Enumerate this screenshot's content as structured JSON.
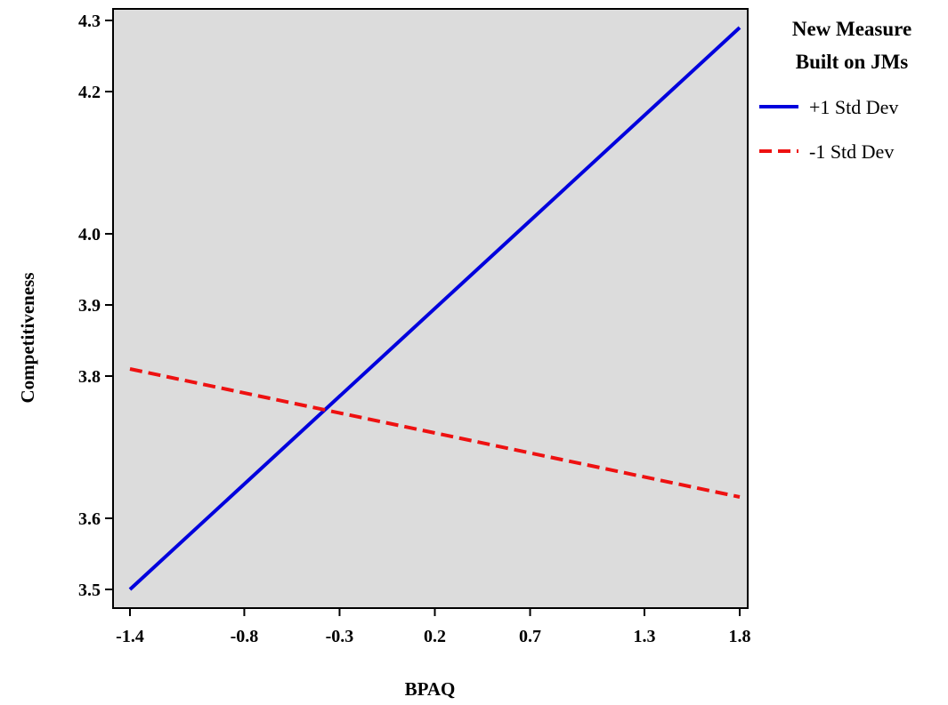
{
  "chart_data": {
    "type": "line",
    "xlabel": "BPAQ",
    "ylabel": "Competitiveness",
    "xlim": [
      -1.4,
      1.8
    ],
    "ylim": [
      3.5,
      4.3
    ],
    "x_ticks": [
      "-1.4",
      "-0.8",
      "-0.3",
      "0.2",
      "0.7",
      "1.3",
      "1.8"
    ],
    "y_ticks": [
      "3.5",
      "3.6",
      "3.8",
      "3.9",
      "4.0",
      "4.2",
      "4.3"
    ],
    "grid": false,
    "background_color": "#dcdcdc",
    "legend": {
      "position": "right",
      "title_lines": [
        "New Measure",
        "Built on JMs"
      ]
    },
    "series": [
      {
        "name": "+1 Std Dev",
        "style": "solid",
        "color": "#0000dd",
        "x": [
          -1.4,
          1.8
        ],
        "y": [
          3.5,
          4.29
        ]
      },
      {
        "name": "-1 Std Dev",
        "style": "dashed",
        "color": "#ee1111",
        "x": [
          -1.4,
          1.8
        ],
        "y": [
          3.81,
          3.63
        ]
      }
    ]
  }
}
